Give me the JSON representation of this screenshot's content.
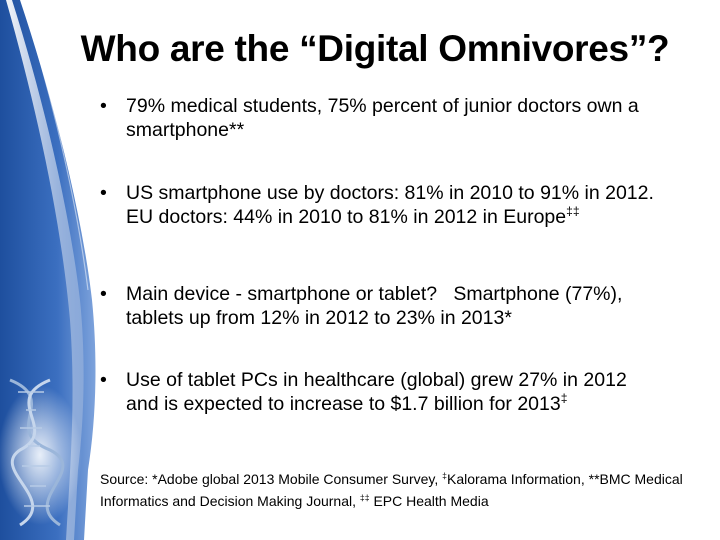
{
  "slide": {
    "title": "Who are the “Digital Omnivores”?",
    "bullet_glyph": "•",
    "bullets": [
      {
        "text": "79% medical students, 75% percent of junior doctors own a smartphone**",
        "sup": ""
      },
      {
        "text": "US smartphone use by doctors: 81% in 2010 to 91% in 2012. EU doctors: 44% in 2010 to 81% in 2012 in Europe",
        "sup": "‡‡"
      },
      {
        "text": "Main device - smartphone or tablet?   Smartphone (77%), tablets up from 12% in 2012 to 23% in 2013*",
        "sup": ""
      },
      {
        "text": "Use of tablet PCs in healthcare (global) grew 27% in 2012 and is expected to increase to $1.7 billion for 2013",
        "sup": "‡"
      }
    ],
    "source": {
      "part1": "Source: *Adobe global 2013 Mobile Consumer Survey, ",
      "sup1": "‡",
      "part2": "Kalorama Information, **BMC Medical Informatics and Decision Making Journal, ",
      "sup2": "‡‡",
      "part3": " EPC Health Media"
    }
  },
  "colors": {
    "sidebar_blue": "#2f62b3",
    "sidebar_light": "#dbe6f6",
    "text": "#000000"
  }
}
